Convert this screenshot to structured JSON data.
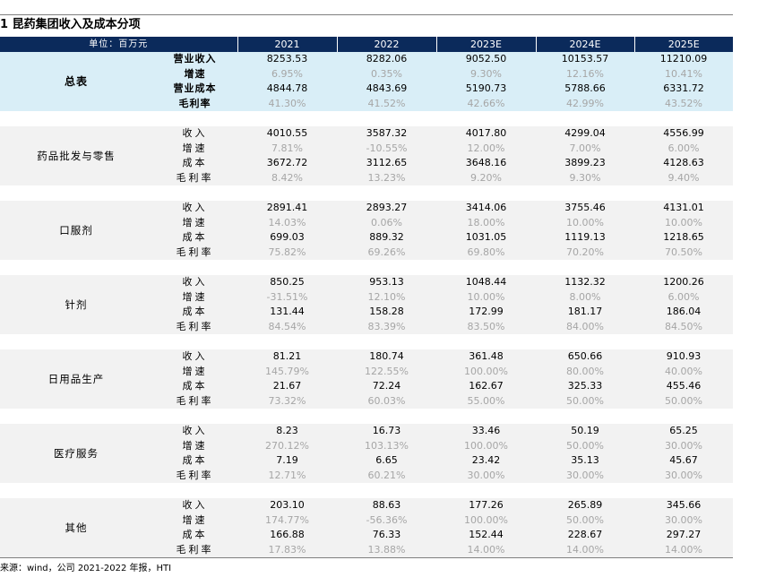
{
  "title": "1 昆药集团收入及成本分项",
  "header": {
    "unit": "单位：百万元",
    "years": [
      "2021",
      "2022",
      "2023E",
      "2024E",
      "2025E"
    ]
  },
  "total": {
    "segment": "总表",
    "rows": [
      {
        "metric": "营业收入",
        "values": [
          "8253.53",
          "8282.06",
          "9052.50",
          "10153.57",
          "11210.09"
        ]
      },
      {
        "metric": "增速",
        "values": [
          "6.95%",
          "0.35%",
          "9.30%",
          "12.16%",
          "10.41%"
        ]
      },
      {
        "metric": "营业成本",
        "values": [
          "4844.78",
          "4843.69",
          "5190.73",
          "5788.66",
          "6331.72"
        ]
      },
      {
        "metric": "毛利率",
        "values": [
          "41.30%",
          "41.52%",
          "42.66%",
          "42.99%",
          "43.52%"
        ]
      }
    ]
  },
  "segments": [
    {
      "name": "药品批发与零售",
      "rows": [
        {
          "metric": "收入",
          "values": [
            "4010.55",
            "3587.32",
            "4017.80",
            "4299.04",
            "4556.99"
          ]
        },
        {
          "metric": "增速",
          "values": [
            "7.81%",
            "-10.55%",
            "12.00%",
            "7.00%",
            "6.00%"
          ]
        },
        {
          "metric": "成本",
          "values": [
            "3672.72",
            "3112.65",
            "3648.16",
            "3899.23",
            "4128.63"
          ]
        },
        {
          "metric": "毛利率",
          "values": [
            "8.42%",
            "13.23%",
            "9.20%",
            "9.30%",
            "9.40%"
          ]
        }
      ]
    },
    {
      "name": "口服剂",
      "rows": [
        {
          "metric": "收入",
          "values": [
            "2891.41",
            "2893.27",
            "3414.06",
            "3755.46",
            "4131.01"
          ]
        },
        {
          "metric": "增速",
          "values": [
            "14.03%",
            "0.06%",
            "18.00%",
            "10.00%",
            "10.00%"
          ]
        },
        {
          "metric": "成本",
          "values": [
            "699.03",
            "889.32",
            "1031.05",
            "1119.13",
            "1218.65"
          ]
        },
        {
          "metric": "毛利率",
          "values": [
            "75.82%",
            "69.26%",
            "69.80%",
            "70.20%",
            "70.50%"
          ]
        }
      ]
    },
    {
      "name": "针剂",
      "rows": [
        {
          "metric": "收入",
          "values": [
            "850.25",
            "953.13",
            "1048.44",
            "1132.32",
            "1200.26"
          ]
        },
        {
          "metric": "增速",
          "values": [
            "-31.51%",
            "12.10%",
            "10.00%",
            "8.00%",
            "6.00%"
          ]
        },
        {
          "metric": "成本",
          "values": [
            "131.44",
            "158.28",
            "172.99",
            "181.17",
            "186.04"
          ]
        },
        {
          "metric": "毛利率",
          "values": [
            "84.54%",
            "83.39%",
            "83.50%",
            "84.00%",
            "84.50%"
          ]
        }
      ]
    },
    {
      "name": "日用品生产",
      "rows": [
        {
          "metric": "收入",
          "values": [
            "81.21",
            "180.74",
            "361.48",
            "650.66",
            "910.93"
          ]
        },
        {
          "metric": "增速",
          "values": [
            "145.79%",
            "122.55%",
            "100.00%",
            "80.00%",
            "40.00%"
          ]
        },
        {
          "metric": "成本",
          "values": [
            "21.67",
            "72.24",
            "162.67",
            "325.33",
            "455.46"
          ]
        },
        {
          "metric": "毛利率",
          "values": [
            "73.32%",
            "60.03%",
            "55.00%",
            "50.00%",
            "50.00%"
          ]
        }
      ]
    },
    {
      "name": "医疗服务",
      "rows": [
        {
          "metric": "收入",
          "values": [
            "8.23",
            "16.73",
            "33.46",
            "50.19",
            "65.25"
          ]
        },
        {
          "metric": "增速",
          "values": [
            "270.12%",
            "103.13%",
            "100.00%",
            "50.00%",
            "30.00%"
          ]
        },
        {
          "metric": "成本",
          "values": [
            "7.19",
            "6.65",
            "23.42",
            "35.13",
            "45.67"
          ]
        },
        {
          "metric": "毛利率",
          "values": [
            "12.71%",
            "60.21%",
            "30.00%",
            "30.00%",
            "30.00%"
          ]
        }
      ]
    },
    {
      "name": "其他",
      "rows": [
        {
          "metric": "收入",
          "values": [
            "203.10",
            "88.63",
            "177.26",
            "265.89",
            "345.66"
          ]
        },
        {
          "metric": "增速",
          "values": [
            "174.77%",
            "-56.36%",
            "100.00%",
            "50.00%",
            "30.00%"
          ]
        },
        {
          "metric": "成本",
          "values": [
            "166.88",
            "76.33",
            "152.44",
            "228.67",
            "297.27"
          ]
        },
        {
          "metric": "毛利率",
          "values": [
            "17.83%",
            "13.88%",
            "14.00%",
            "14.00%",
            "14.00%"
          ]
        }
      ]
    }
  ],
  "source": "来源：wind，公司 2021-2022 年报，HTI",
  "colors": {
    "header_bg": "#0b2a5b",
    "total_bg": "#d9eef7",
    "group_bg": "#f2f2f2",
    "secondary_text": "#a6a6a6"
  }
}
